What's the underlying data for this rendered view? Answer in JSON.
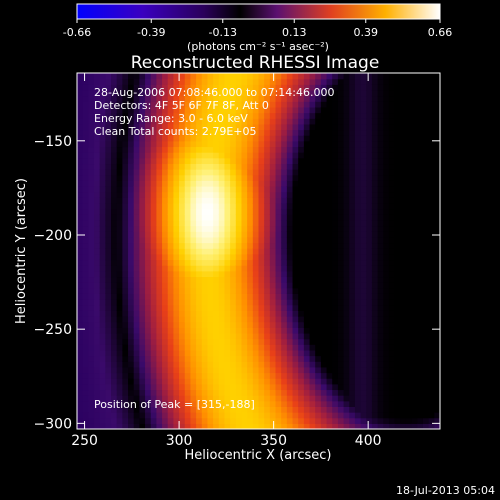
{
  "colorbar": {
    "min_label": "-0.66",
    "ticks": [
      "-0.66",
      "-0.39",
      "-0.13",
      "0.13",
      "0.39",
      "0.66"
    ],
    "tick_values": [
      -0.66,
      -0.39,
      -0.13,
      0.13,
      0.39,
      0.66
    ],
    "range": [
      -0.66,
      0.66
    ],
    "units": "(photons cm⁻² s⁻¹ asec⁻²)"
  },
  "chart_data": {
    "type": "heatmap",
    "title": "Reconstructed RHESSI Image",
    "xlabel": "Heliocentric X (arcsec)",
    "ylabel": "Heliocentric Y (arcsec)",
    "xlim": [
      246,
      438
    ],
    "ylim": [
      -303,
      -114
    ],
    "xticks": [
      250,
      300,
      350,
      400
    ],
    "yticks": [
      -150,
      -200,
      -250,
      -300
    ],
    "xtick_labels": [
      "250",
      "300",
      "350",
      "400"
    ],
    "ytick_labels": [
      "−150",
      "−200",
      "−250",
      "−300"
    ],
    "peak": [
      315,
      -188
    ],
    "colormap": [
      "#0000ff",
      "#6a0dad",
      "#000000",
      "#3a0a6a",
      "#cc2a2a",
      "#ff8800",
      "#ffd700",
      "#ffffff"
    ],
    "annotations": [
      "28-Aug-2006 07:08:46.000 to 07:14:46.000",
      "Detectors: 4F 5F 6F 7F 8F, Att 0",
      "Energy Range: 3.0 - 6.0 keV",
      "Clean     Total counts: 2.79E+05",
      "Position of Peak = [315,-188]"
    ]
  },
  "footer": {
    "timestamp": "18-Jul-2013 05:04"
  }
}
